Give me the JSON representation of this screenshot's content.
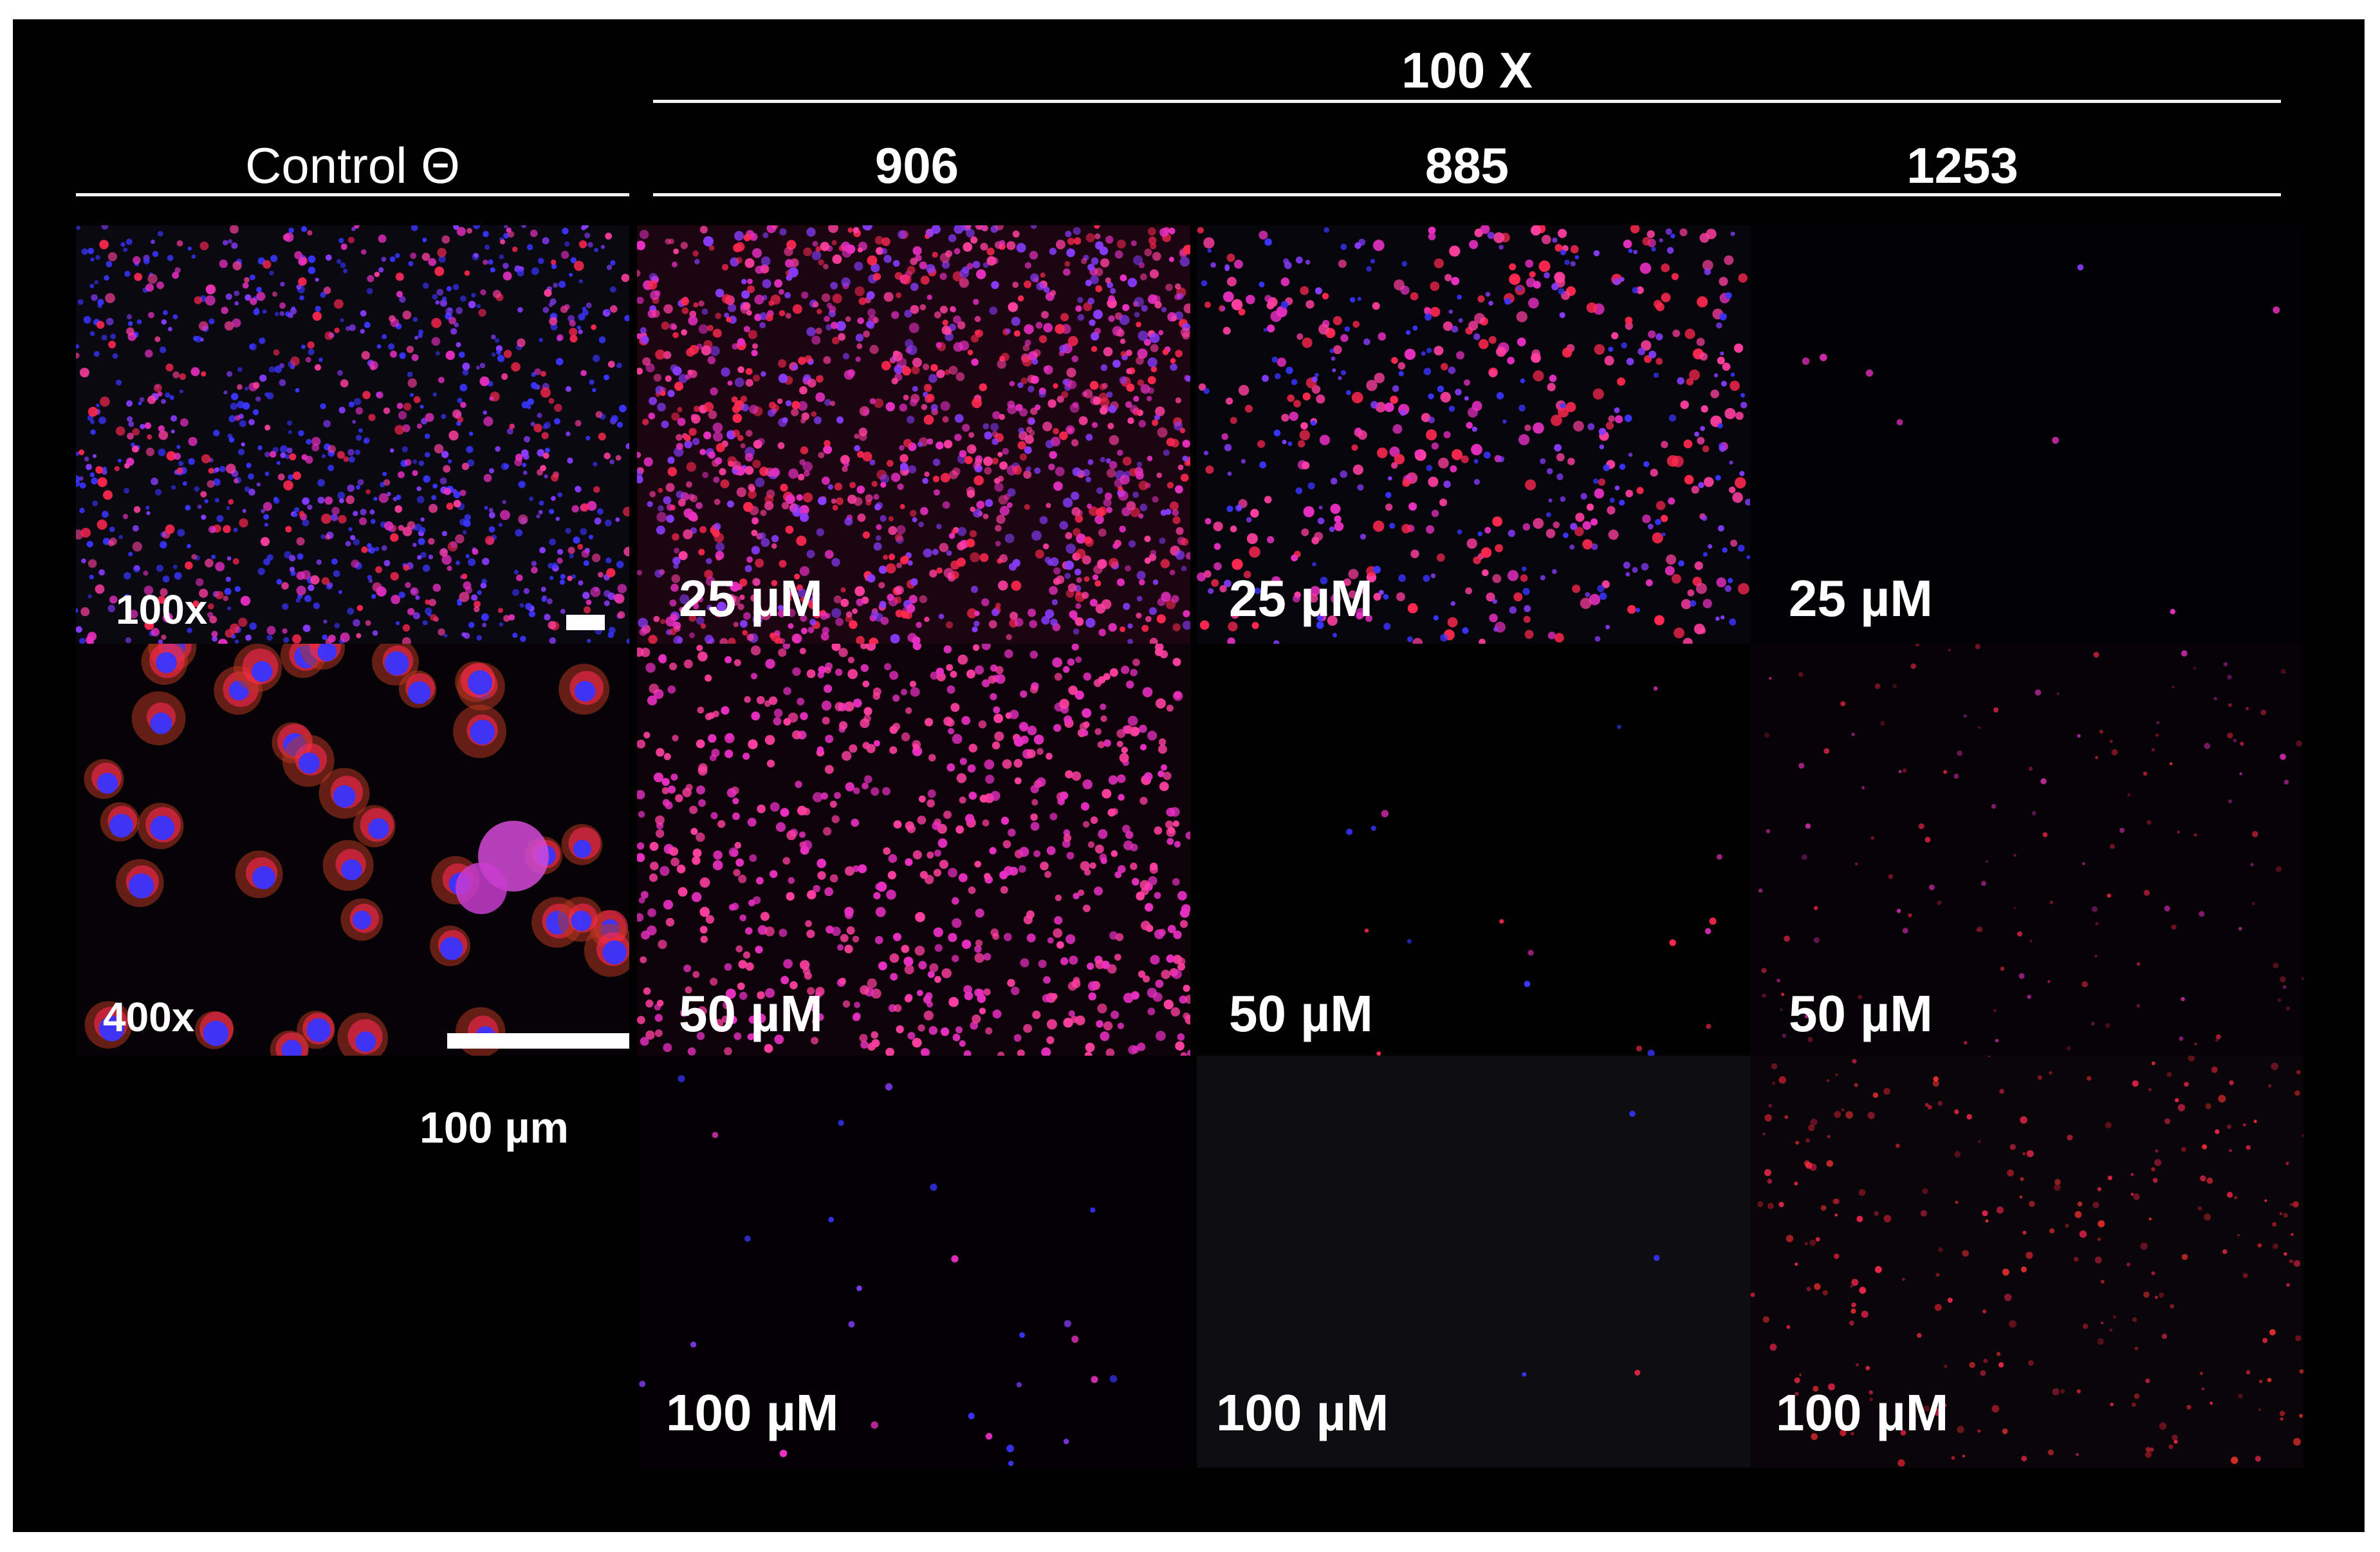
{
  "figure": {
    "top_header": "100 X",
    "control_header": "Control Θ",
    "compounds": [
      "906",
      "885",
      "1253"
    ],
    "concentrations": [
      "25 µM",
      "50 µM",
      "100 µM"
    ],
    "control_labels": {
      "low_mag": "100x",
      "high_mag": "400x"
    },
    "scale_bar_label": "100 µm",
    "colors": {
      "background": "#000000",
      "nucleus_stain": "#3b33ff",
      "membrane_stain": "#ff2a4a",
      "merged": "#e030c0"
    }
  }
}
